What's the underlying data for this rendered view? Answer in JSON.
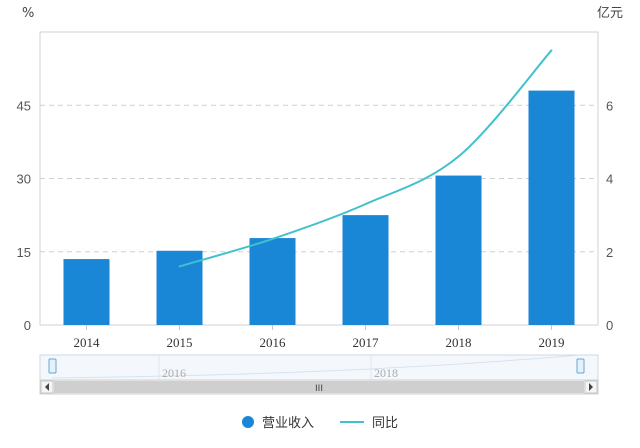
{
  "chart_data": {
    "type": "bar",
    "categories": [
      "2014",
      "2015",
      "2016",
      "2017",
      "2018",
      "2019"
    ],
    "series": [
      {
        "name": "营业收入",
        "type": "bar",
        "axis": "left",
        "values": [
          13.5,
          15.2,
          17.8,
          22.5,
          30.6,
          48.0
        ]
      },
      {
        "name": "同比",
        "type": "line",
        "axis": "right",
        "values": [
          null,
          1.6,
          2.35,
          3.3,
          4.6,
          7.5
        ]
      }
    ],
    "left_axis": {
      "unit": "%",
      "ticks": [
        0,
        15,
        30,
        45
      ],
      "ylim": [
        0,
        60
      ]
    },
    "right_axis": {
      "unit": "亿元",
      "ticks": [
        0,
        2,
        4,
        6
      ],
      "ylim": [
        0,
        8
      ]
    },
    "grid": true,
    "legend_position": "bottom-center",
    "zoom_slider": {
      "labels": [
        "2016",
        "2018"
      ],
      "handle_label": "III"
    },
    "colors": {
      "bar": "#1a86d6",
      "line": "#40c1cc"
    }
  }
}
